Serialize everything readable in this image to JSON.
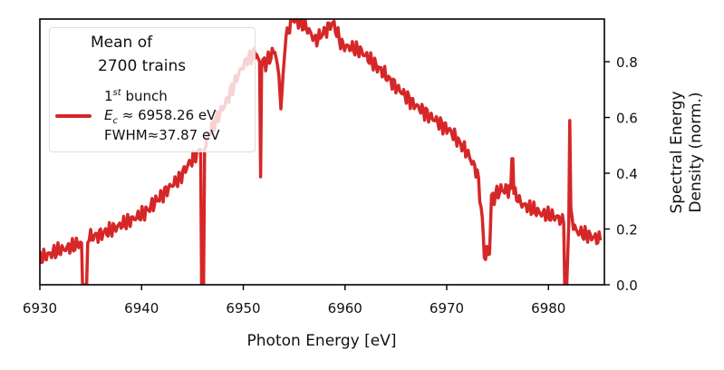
{
  "chart_data": {
    "type": "line",
    "xlabel": "Photon Energy [eV]",
    "ylabel_lines": [
      "Spectral Energy",
      "Density (norm.)"
    ],
    "xlim": [
      6930,
      6985.5
    ],
    "ylim": [
      0,
      0.953
    ],
    "xticks": [
      6930,
      6940,
      6950,
      6960,
      6970,
      6980
    ],
    "xtick_labels": [
      "6930",
      "6940",
      "6950",
      "6960",
      "6970",
      "6980"
    ],
    "yticks": [
      0.0,
      0.2,
      0.4,
      0.6,
      0.8
    ],
    "ytick_labels": [
      "0.0",
      "0.2",
      "0.4",
      "0.6",
      "0.8"
    ],
    "y_axis_side": "right",
    "grid": false,
    "legend": {
      "placement": "top-left",
      "title_lines": [
        "Mean of",
        "2700 trains"
      ],
      "entry_lines": [
        "1st bunch",
        "E_c ≈ 6958.26 eV",
        "FWHM≈37.87 eV"
      ]
    },
    "series": [
      {
        "color": "#d62728",
        "x": [
          6930.0,
          6931.4,
          6933.2,
          6934.1,
          6934.2,
          6934.3,
          6934.6,
          6934.7,
          6935.0,
          6936.7,
          6938.5,
          6940.3,
          6942.0,
          6943.8,
          6944.7,
          6945.8,
          6945.9,
          6946.0,
          6946.1,
          6946.2,
          6946.9,
          6948.2,
          6949.6,
          6950.4,
          6951.3,
          6951.6,
          6951.7,
          6951.8,
          6952.2,
          6953.1,
          6953.5,
          6953.7,
          6953.9,
          6954.2,
          6954.9,
          6956.2,
          6957.1,
          6958.8,
          6959.7,
          6961.5,
          6963.3,
          6965.0,
          6966.8,
          6968.6,
          6970.4,
          6972.1,
          6973.0,
          6973.5,
          6973.7,
          6974.2,
          6974.4,
          6975.2,
          6976.3,
          6976.4,
          6976.5,
          6976.6,
          6977.4,
          6979.2,
          6981.0,
          6981.5,
          6981.6,
          6981.8,
          6982.0,
          6982.1,
          6982.2,
          6982.7,
          6984.5,
          6985.1
        ],
        "y": [
          0.094,
          0.117,
          0.137,
          0.15,
          0.0,
          0.0,
          0.0,
          0.15,
          0.169,
          0.192,
          0.224,
          0.257,
          0.322,
          0.387,
          0.436,
          0.485,
          0.0,
          0.0,
          0.0,
          0.5,
          0.566,
          0.647,
          0.761,
          0.81,
          0.826,
          0.8,
          0.387,
          0.8,
          0.793,
          0.842,
          0.75,
          0.631,
          0.75,
          0.891,
          0.956,
          0.924,
          0.875,
          0.94,
          0.859,
          0.84,
          0.777,
          0.712,
          0.647,
          0.598,
          0.55,
          0.468,
          0.403,
          0.24,
          0.11,
          0.11,
          0.306,
          0.338,
          0.345,
          0.452,
          0.452,
          0.33,
          0.289,
          0.257,
          0.24,
          0.22,
          0.0,
          0.0,
          0.22,
          0.589,
          0.25,
          0.192,
          0.169,
          0.159
        ]
      }
    ]
  }
}
